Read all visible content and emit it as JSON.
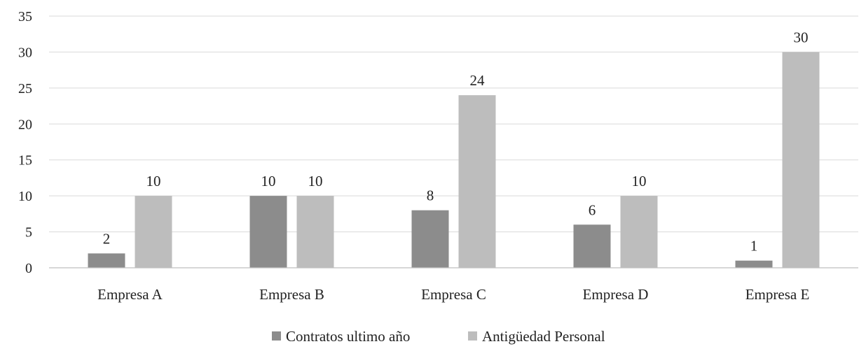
{
  "chart_data": {
    "type": "bar",
    "title": "",
    "xlabel": "",
    "ylabel": "",
    "categories": [
      "Empresa A",
      "Empresa B",
      "Empresa C",
      "Empresa D",
      "Empresa E"
    ],
    "series": [
      {
        "name": "Contratos ultimo año",
        "values": [
          2,
          10,
          8,
          6,
          1
        ],
        "color": "#8c8c8c"
      },
      {
        "name": "Antigüedad Personal",
        "values": [
          10,
          10,
          24,
          10,
          30
        ],
        "color": "#bdbdbd"
      }
    ],
    "ylim": [
      0,
      35
    ],
    "yticks": [
      0,
      5,
      10,
      15,
      20,
      25,
      30,
      35
    ],
    "grid": true,
    "data_labels": true,
    "legend_position": "bottom"
  }
}
